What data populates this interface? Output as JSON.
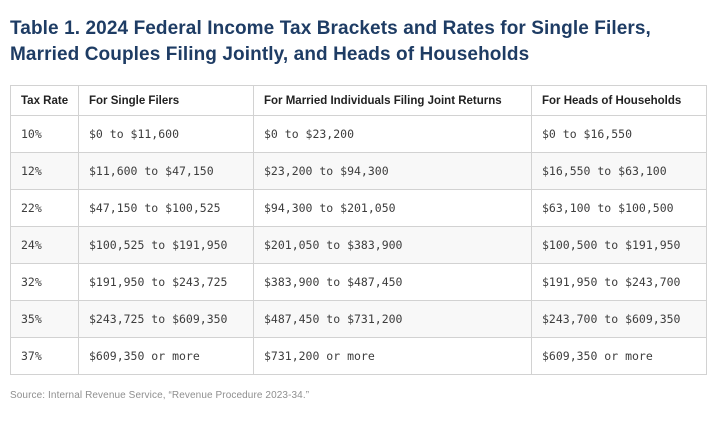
{
  "figure": {
    "title": "Table 1. 2024 Federal Income Tax Brackets and Rates for Single Filers, Married Couples Filing Jointly, and Heads of Households",
    "source_note": "Source: Internal Revenue Service, “Revenue Procedure 2023-34.”"
  },
  "chart_data": {
    "type": "table",
    "title": "Table 1. 2024 Federal Income Tax Brackets and Rates for Single Filers, Married Couples Filing Jointly, and Heads of Households",
    "columns": [
      "Tax Rate",
      "For Single Filers",
      "For Married Individuals Filing Joint Returns",
      "For Heads of Households"
    ],
    "rows": [
      [
        "10%",
        "$0 to $11,600",
        "$0 to $23,200",
        "$0 to $16,550"
      ],
      [
        "12%",
        "$11,600 to $47,150",
        "$23,200 to $94,300",
        "$16,550 to $63,100"
      ],
      [
        "22%",
        "$47,150 to $100,525",
        "$94,300 to $201,050",
        "$63,100 to $100,500"
      ],
      [
        "24%",
        "$100,525 to $191,950",
        "$201,050 to $383,900",
        "$100,500 to $191,950"
      ],
      [
        "32%",
        "$191,950 to $243,725",
        "$383,900 to $487,450",
        "$191,950 to $243,700"
      ],
      [
        "35%",
        "$243,725 to $609,350",
        "$487,450 to $731,200",
        "$243,700 to $609,350"
      ],
      [
        "37%",
        "$609,350 or more",
        "$731,200 or more",
        "$609,350 or more"
      ]
    ],
    "source": "Source: Internal Revenue Service, “Revenue Procedure 2023-34.”",
    "layout_hints": {
      "striped_rows": true,
      "grid": true
    }
  },
  "colors": {
    "title_text": "#1e3c64",
    "border": "#d2d2d2",
    "row_alt_background": "#f8f8f8",
    "header_text": "#222222",
    "cell_text": "#3d3d3d",
    "source_text": "#8f8f8f"
  }
}
